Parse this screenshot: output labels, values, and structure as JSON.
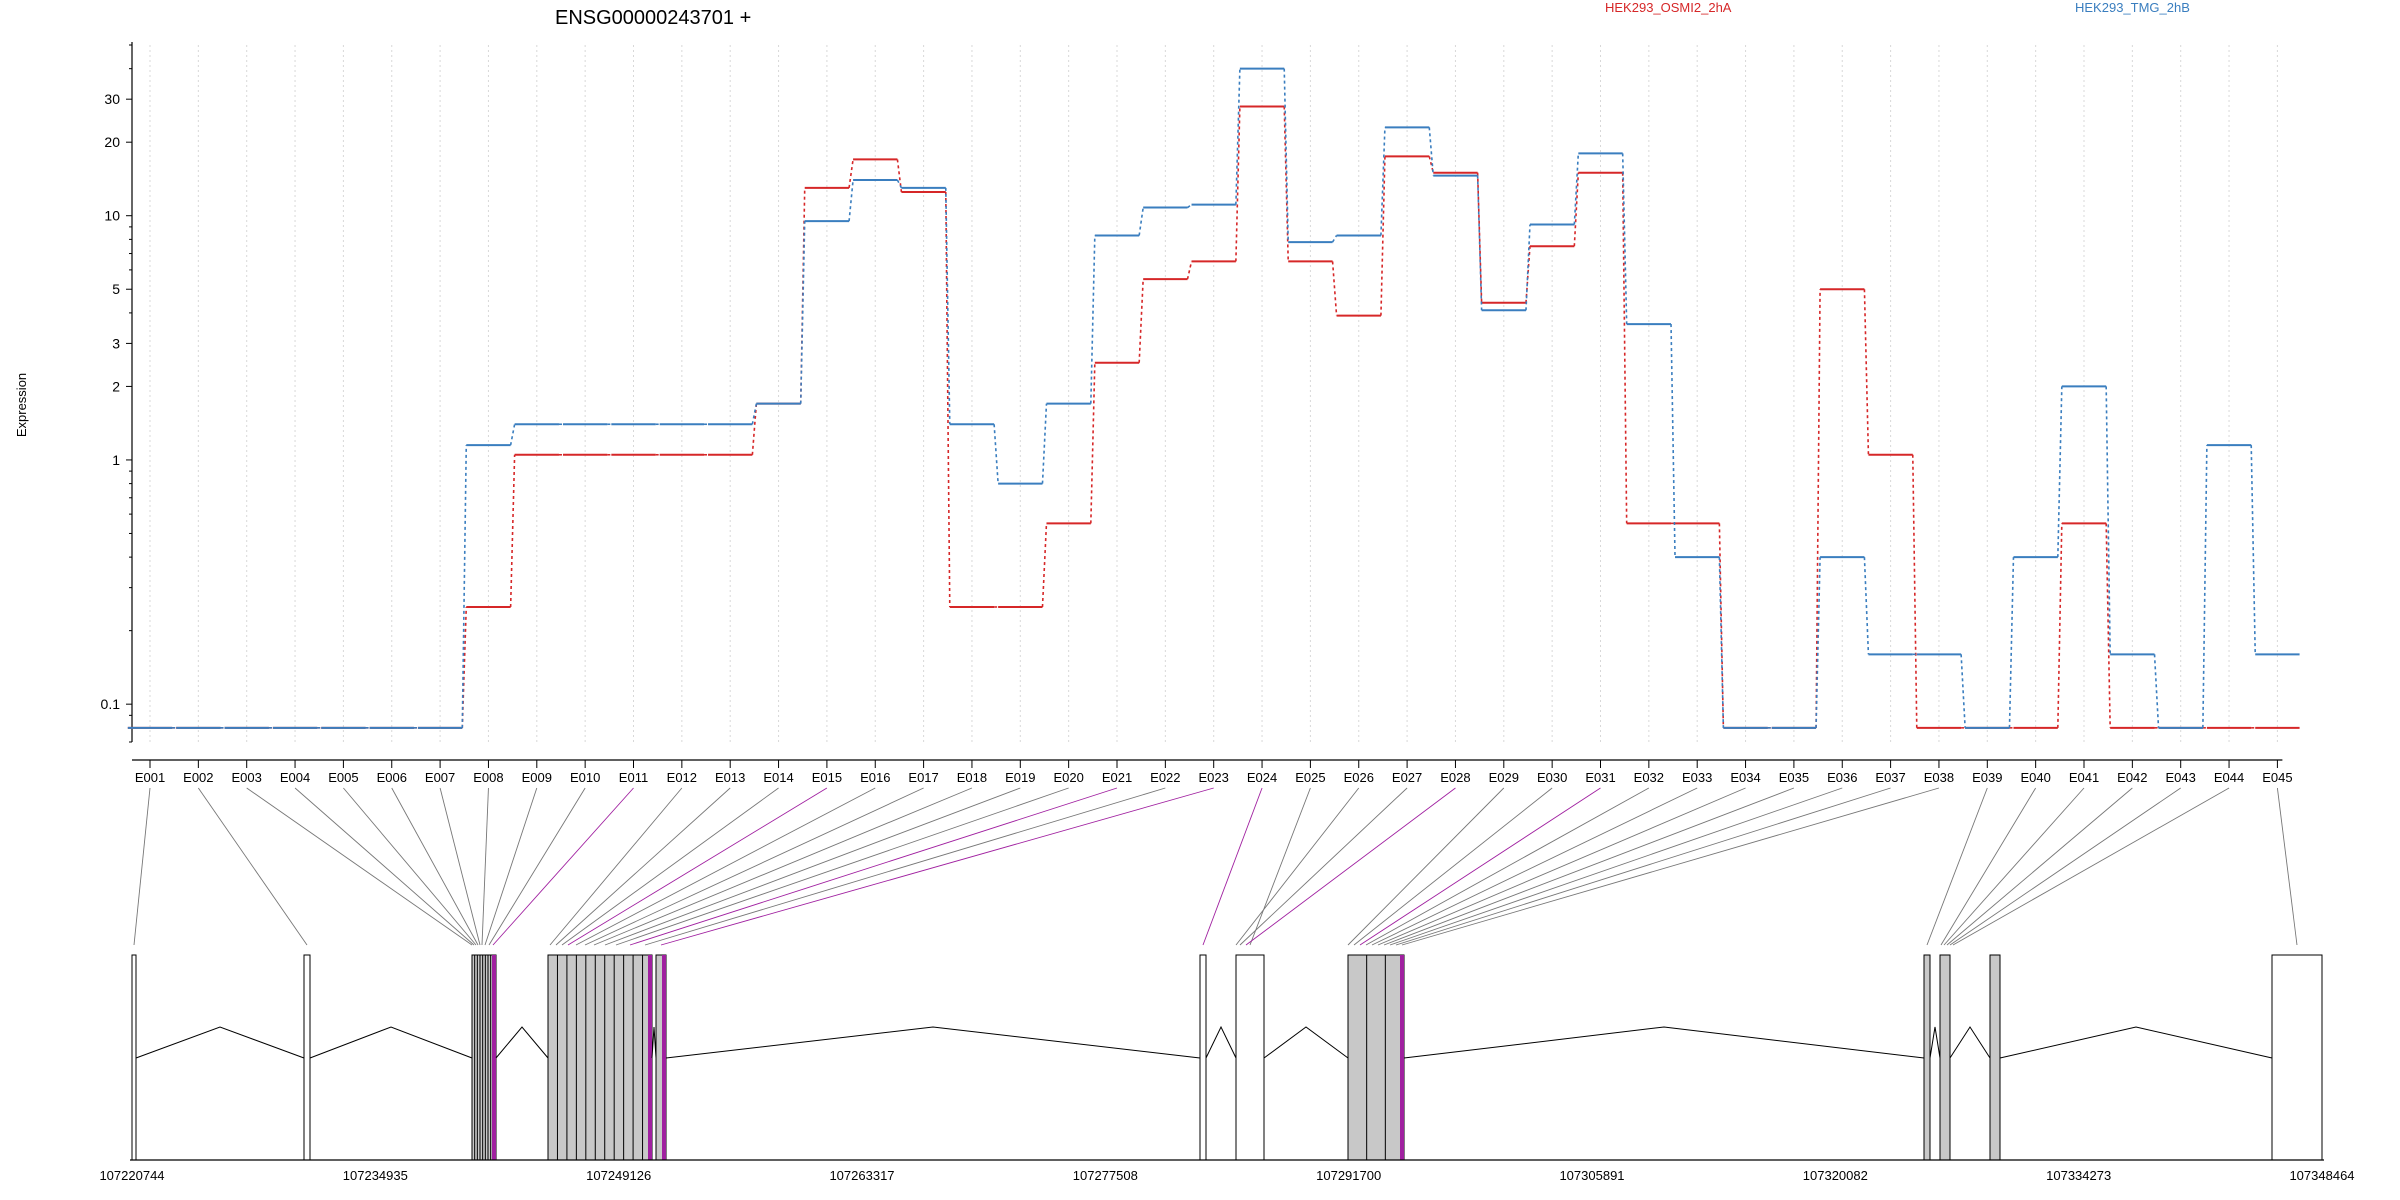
{
  "chart_data": {
    "type": "line",
    "title": "ENSG00000243701 +",
    "xlabel": "",
    "ylabel": "Expression",
    "y_scale": "log",
    "ylim": [
      0.07,
      50
    ],
    "yticks": [
      "0.1",
      "1",
      "2",
      "3",
      "5",
      "10",
      "20",
      "30"
    ],
    "ytick_values": [
      0.1,
      1,
      2,
      3,
      5,
      10,
      20,
      30
    ],
    "grid": "vertical dotted",
    "legend": "top",
    "categories": [
      "E001",
      "E002",
      "E003",
      "E004",
      "E005",
      "E006",
      "E007",
      "E008",
      "E009",
      "E010",
      "E011",
      "E012",
      "E013",
      "E014",
      "E015",
      "E016",
      "E017",
      "E018",
      "E019",
      "E020",
      "E021",
      "E022",
      "E023",
      "E024",
      "E025",
      "E026",
      "E027",
      "E028",
      "E029",
      "E030",
      "E031",
      "E032",
      "E033",
      "E034",
      "E035",
      "E036",
      "E037",
      "E038",
      "E039",
      "E040",
      "E041",
      "E042",
      "E043",
      "E044",
      "E045"
    ],
    "series": [
      {
        "name": "HEK293_OSMI2_2hA",
        "color": "#d62728",
        "values": [
          0.08,
          0.08,
          0.08,
          0.08,
          0.08,
          0.08,
          0.08,
          0.25,
          1.05,
          1.05,
          1.05,
          1.05,
          1.05,
          1.7,
          13,
          17,
          12.5,
          0.25,
          0.25,
          0.55,
          2.5,
          5.5,
          6.5,
          28,
          6.5,
          3.9,
          17.5,
          15,
          4.4,
          7.5,
          15,
          0.55,
          0.55,
          0.08,
          0.08,
          5,
          1.05,
          0.08,
          0.08,
          0.08,
          0.55,
          0.08,
          0.08,
          0.08,
          0.08
        ]
      },
      {
        "name": "HEK293_TMG_2hB",
        "color": "#3a7ebf",
        "values": [
          0.08,
          0.08,
          0.08,
          0.08,
          0.08,
          0.08,
          0.08,
          1.15,
          1.4,
          1.4,
          1.4,
          1.4,
          1.4,
          1.7,
          9.5,
          14,
          13,
          1.4,
          0.8,
          1.7,
          8.3,
          10.8,
          11.1,
          40,
          7.8,
          8.3,
          23,
          14.6,
          4.1,
          9.2,
          18,
          3.6,
          0.4,
          0.08,
          0.08,
          0.4,
          0.16,
          0.16,
          0.08,
          0.4,
          2,
          0.16,
          0.08,
          1.15,
          0.16
        ]
      }
    ]
  },
  "gene_model": {
    "coordinate_labels": [
      "107220744",
      "107234935",
      "107249126",
      "107263317",
      "107277508",
      "107291700",
      "107305891",
      "107320082",
      "107334273",
      "107348464"
    ],
    "exon_color": "#c8c8c8",
    "highlight_color": "#a020a0",
    "exon_blocks": [
      {
        "exons": [
          1
        ],
        "highlight": false
      },
      {
        "exons": [
          2
        ],
        "highlight": false
      },
      {
        "exons": [
          3,
          4,
          5,
          6,
          7,
          8,
          9,
          10,
          11
        ],
        "highlight": true
      },
      {
        "exons": [
          12,
          13,
          14,
          15,
          16,
          17,
          18,
          19,
          20,
          21,
          22
        ],
        "highlight": true
      },
      {
        "exons": [
          23
        ],
        "highlight": true
      },
      {
        "exons": [
          24
        ],
        "highlight": false
      },
      {
        "exons": [
          25
        ],
        "highlight": false
      },
      {
        "exons": [
          26,
          27,
          28
        ],
        "highlight": true
      },
      {
        "exons": [
          29,
          30,
          31,
          32,
          33,
          34,
          35,
          36,
          37,
          38
        ],
        "highlight": false
      },
      {
        "exons": [
          39
        ],
        "highlight": false
      },
      {
        "exons": [
          40,
          41,
          42,
          43,
          44
        ],
        "highlight": false
      },
      {
        "exons": [
          45
        ],
        "highlight": false
      }
    ]
  }
}
